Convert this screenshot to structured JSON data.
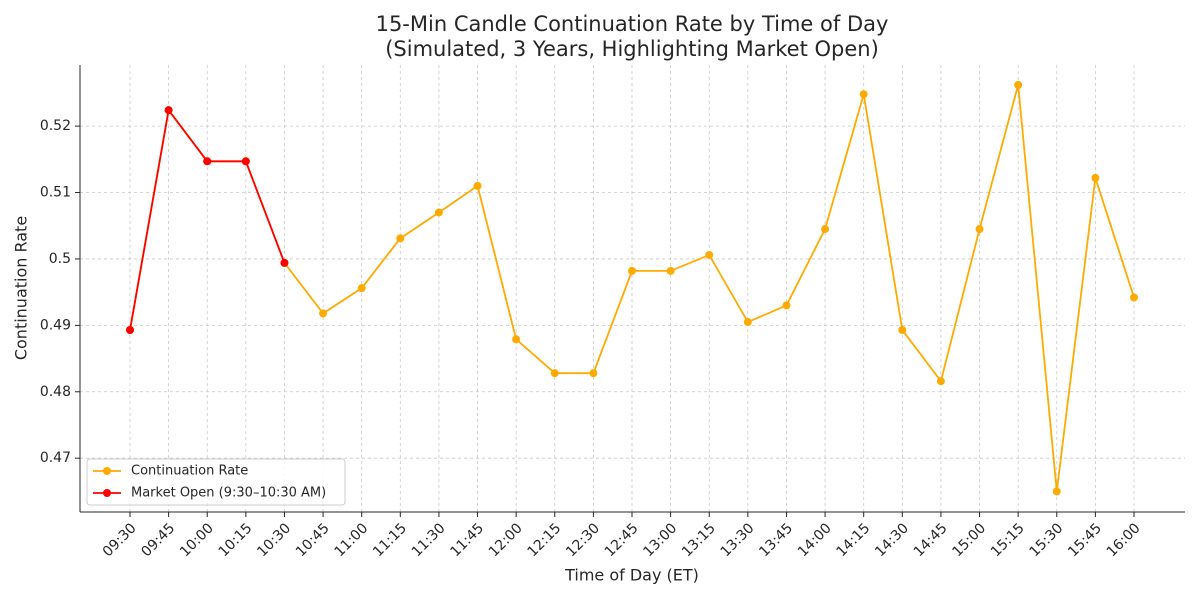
{
  "chart_data": {
    "type": "line",
    "title": "15-Min Candle Continuation Rate by Time of Day",
    "subtitle": "(Simulated, 3 Years, Highlighting Market Open)",
    "x_label": "Time of Day (ET)",
    "y_label": "Continuation Rate",
    "categories": [
      "09:30",
      "09:45",
      "10:00",
      "10:15",
      "10:30",
      "10:45",
      "11:00",
      "11:15",
      "11:30",
      "11:45",
      "12:00",
      "12:15",
      "12:30",
      "12:45",
      "13:00",
      "13:15",
      "13:30",
      "13:45",
      "14:00",
      "14:15",
      "14:30",
      "14:45",
      "15:00",
      "15:15",
      "15:30",
      "15:45",
      "16:00"
    ],
    "series": [
      {
        "name": "Continuation Rate",
        "color": "#ffaa00",
        "values": [
          0.4893,
          0.5224,
          0.5147,
          0.5147,
          0.4994,
          0.4918,
          0.4956,
          0.5031,
          0.507,
          0.511,
          0.4879,
          0.4828,
          0.4828,
          0.4982,
          0.4982,
          0.5006,
          0.4905,
          0.493,
          0.5045,
          0.5248,
          0.4893,
          0.4816,
          0.5045,
          0.5262,
          0.465,
          0.5122,
          0.4942
        ]
      },
      {
        "name": "Market Open (9:30–10:30 AM)",
        "color": "#ff0000",
        "values": [
          0.4893,
          0.5224,
          0.5147,
          0.5147,
          0.4994,
          null,
          null,
          null,
          null,
          null,
          null,
          null,
          null,
          null,
          null,
          null,
          null,
          null,
          null,
          null,
          null,
          null,
          null,
          null,
          null,
          null,
          null
        ]
      }
    ],
    "ylim": [
      0.4619,
      0.5292
    ],
    "yticks": [
      0.47,
      0.48,
      0.49,
      0.5,
      0.51,
      0.52
    ],
    "grid": true,
    "legend": "lower left"
  }
}
